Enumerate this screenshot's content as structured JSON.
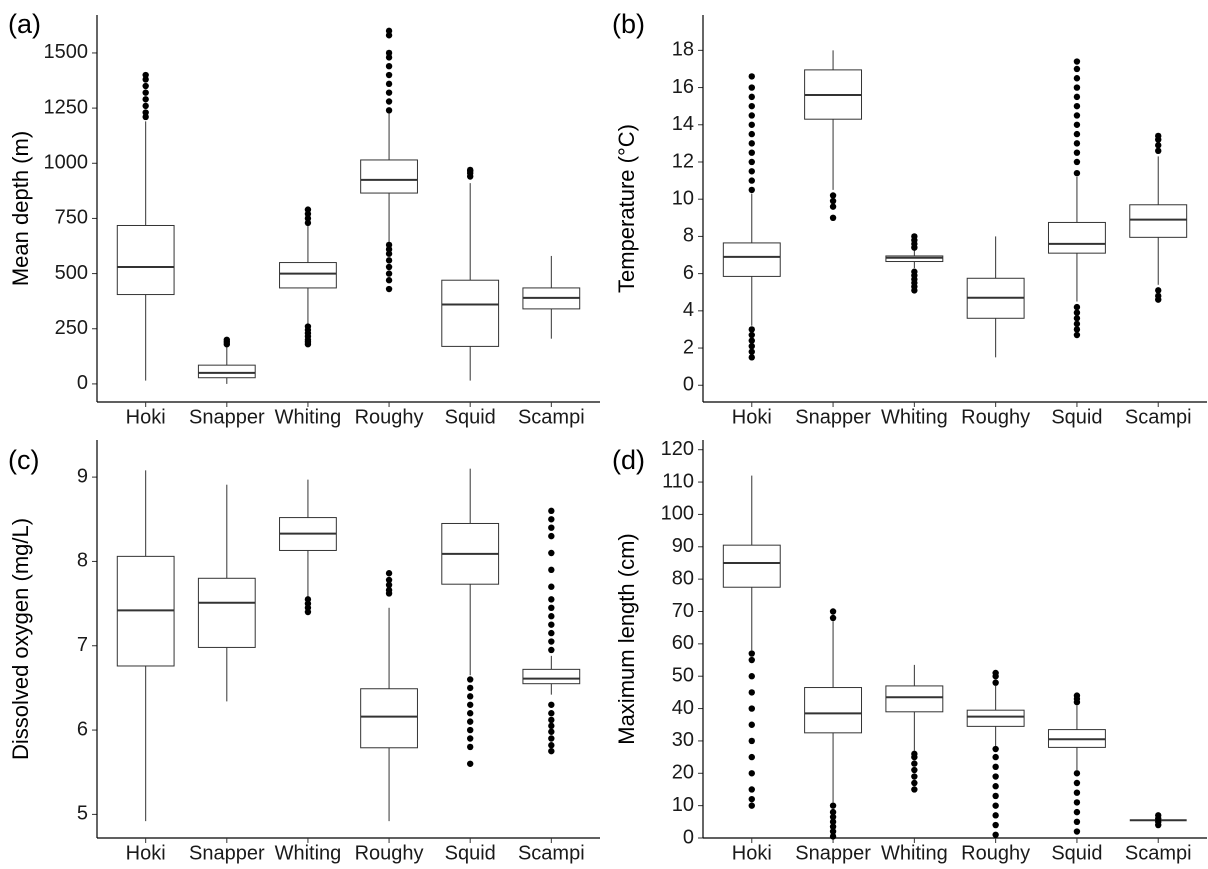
{
  "chart_data": [
    {
      "type": "box",
      "label": "(a)",
      "y_label": "Mean depth (m)",
      "categories": [
        "Hoki",
        "Snapper",
        "Whiting",
        "Roughy",
        "Squid",
        "Scampi"
      ],
      "boxes": [
        {
          "min": 15,
          "q1": 405,
          "median": 530,
          "q3": 718,
          "max": 1190,
          "outliers": [
            1210,
            1230,
            1260,
            1290,
            1320,
            1350,
            1380,
            1400
          ]
        },
        {
          "min": 0,
          "q1": 28,
          "median": 50,
          "q3": 85,
          "max": 170,
          "outliers": [
            180,
            190,
            200
          ]
        },
        {
          "min": 270,
          "q1": 435,
          "median": 500,
          "q3": 550,
          "max": 720,
          "outliers": [
            180,
            190,
            200,
            215,
            230,
            245,
            260,
            730,
            750,
            770,
            790
          ]
        },
        {
          "min": 640,
          "q1": 865,
          "median": 925,
          "q3": 1015,
          "max": 1230,
          "outliers": [
            430,
            470,
            500,
            530,
            560,
            590,
            610,
            630,
            1240,
            1280,
            1320,
            1360,
            1400,
            1440,
            1480,
            1500,
            1580,
            1600
          ]
        },
        {
          "min": 15,
          "q1": 170,
          "median": 360,
          "q3": 470,
          "max": 910,
          "outliers": [
            940,
            955,
            965,
            970
          ]
        },
        {
          "min": 205,
          "q1": 340,
          "median": 390,
          "q3": 435,
          "max": 580,
          "outliers": []
        }
      ],
      "ylim": [
        -82,
        1672
      ],
      "yticks": [
        0,
        250,
        500,
        750,
        1000,
        1250,
        1500
      ]
    },
    {
      "type": "box",
      "label": "(b)",
      "y_label": "Temperature (°C)",
      "categories": [
        "Hoki",
        "Snapper",
        "Whiting",
        "Roughy",
        "Squid",
        "Scampi"
      ],
      "boxes": [
        {
          "min": 3.2,
          "q1": 5.85,
          "median": 6.9,
          "q3": 7.65,
          "max": 10.3,
          "outliers": [
            1.5,
            1.8,
            2.1,
            2.4,
            2.7,
            3.0,
            10.5,
            11,
            11.5,
            12,
            12.5,
            13,
            13.5,
            14,
            14.5,
            15,
            15.5,
            16,
            16.6
          ]
        },
        {
          "min": 10.5,
          "q1": 14.3,
          "median": 15.6,
          "q3": 16.95,
          "max": 18,
          "outliers": [
            9.0,
            9.6,
            9.9,
            10.2
          ]
        },
        {
          "min": 6.3,
          "q1": 6.65,
          "median": 6.85,
          "q3": 6.95,
          "max": 7.3,
          "outliers": [
            5.1,
            5.3,
            5.5,
            5.7,
            5.9,
            6.1,
            7.4,
            7.6,
            7.8,
            8.0
          ]
        },
        {
          "min": 1.5,
          "q1": 3.6,
          "median": 4.7,
          "q3": 5.75,
          "max": 8.0,
          "outliers": []
        },
        {
          "min": 4.5,
          "q1": 7.1,
          "median": 7.6,
          "q3": 8.75,
          "max": 11.2,
          "outliers": [
            2.7,
            3.0,
            3.3,
            3.6,
            3.9,
            4.2,
            11.4,
            12,
            12.5,
            13,
            13.5,
            14,
            14.5,
            15,
            15.5,
            16,
            16.5,
            17,
            17.4
          ]
        },
        {
          "min": 5.4,
          "q1": 7.95,
          "median": 8.9,
          "q3": 9.7,
          "max": 12.3,
          "outliers": [
            4.6,
            4.8,
            5.1,
            12.6,
            12.9,
            13.2,
            13.4
          ]
        }
      ],
      "ylim": [
        -0.9,
        19.9
      ],
      "yticks": [
        0,
        2,
        4,
        6,
        8,
        10,
        12,
        14,
        16,
        18
      ]
    },
    {
      "type": "box",
      "label": "(c)",
      "y_label": "Dissolved oxygen (mg/L)",
      "categories": [
        "Hoki",
        "Snapper",
        "Whiting",
        "Roughy",
        "Squid",
        "Scampi"
      ],
      "boxes": [
        {
          "min": 4.92,
          "q1": 6.76,
          "median": 7.42,
          "q3": 8.06,
          "max": 9.08,
          "outliers": []
        },
        {
          "min": 6.34,
          "q1": 6.98,
          "median": 7.51,
          "q3": 7.8,
          "max": 8.91,
          "outliers": []
        },
        {
          "min": 7.58,
          "q1": 8.13,
          "median": 8.33,
          "q3": 8.52,
          "max": 8.97,
          "outliers": [
            7.4,
            7.45,
            7.5,
            7.55
          ]
        },
        {
          "min": 4.92,
          "q1": 5.79,
          "median": 6.16,
          "q3": 6.49,
          "max": 7.45,
          "outliers": [
            7.62,
            7.66,
            7.72,
            7.78,
            7.86
          ]
        },
        {
          "min": 6.65,
          "q1": 7.73,
          "median": 8.09,
          "q3": 8.45,
          "max": 9.1,
          "outliers": [
            5.6,
            5.8,
            5.9,
            6.0,
            6.1,
            6.2,
            6.3,
            6.4,
            6.5,
            6.6
          ]
        },
        {
          "min": 6.42,
          "q1": 6.55,
          "median": 6.61,
          "q3": 6.72,
          "max": 6.88,
          "outliers": [
            5.75,
            5.82,
            5.9,
            5.98,
            6.05,
            6.12,
            6.2,
            6.3,
            6.95,
            7.05,
            7.15,
            7.25,
            7.35,
            7.45,
            7.55,
            7.7,
            7.9,
            8.1,
            8.3,
            8.4,
            8.5,
            8.6
          ]
        }
      ],
      "ylim": [
        4.72,
        9.44
      ],
      "yticks": [
        5,
        6,
        7,
        8,
        9
      ]
    },
    {
      "type": "box",
      "label": "(d)",
      "y_label": "Maximum length (cm)",
      "categories": [
        "Hoki",
        "Snapper",
        "Whiting",
        "Roughy",
        "Squid",
        "Scampi"
      ],
      "boxes": [
        {
          "min": 58,
          "q1": 77.5,
          "median": 85,
          "q3": 90.5,
          "max": 112,
          "outliers": [
            10,
            12,
            15,
            20,
            25,
            30,
            35,
            40,
            45,
            50,
            55,
            57
          ]
        },
        {
          "min": 11,
          "q1": 32.5,
          "median": 38.5,
          "q3": 46.5,
          "max": 67,
          "outliers": [
            0.5,
            2,
            3.5,
            5,
            6.5,
            8,
            10,
            68,
            70
          ]
        },
        {
          "min": 27,
          "q1": 39,
          "median": 43.5,
          "q3": 47,
          "max": 53.5,
          "outliers": [
            15,
            17,
            19,
            21,
            23,
            25,
            26
          ]
        },
        {
          "min": 28,
          "q1": 34.5,
          "median": 37.5,
          "q3": 39.5,
          "max": 47,
          "outliers": [
            1,
            4,
            7,
            10,
            13,
            16,
            19,
            22,
            25,
            27.5,
            48,
            50,
            51
          ]
        },
        {
          "min": 21,
          "q1": 28,
          "median": 30.5,
          "q3": 33.5,
          "max": 41,
          "outliers": [
            2,
            5,
            8,
            11,
            14,
            17,
            20,
            42,
            43,
            44
          ]
        },
        {
          "min": 5.5,
          "q1": 5.5,
          "median": 5.5,
          "q3": 5.5,
          "max": 5.5,
          "outliers": [
            4,
            5,
            6,
            7
          ]
        }
      ],
      "ylim": [
        0,
        123
      ],
      "yticks": [
        0,
        10,
        20,
        30,
        40,
        50,
        60,
        70,
        80,
        90,
        100,
        110,
        120
      ]
    }
  ]
}
